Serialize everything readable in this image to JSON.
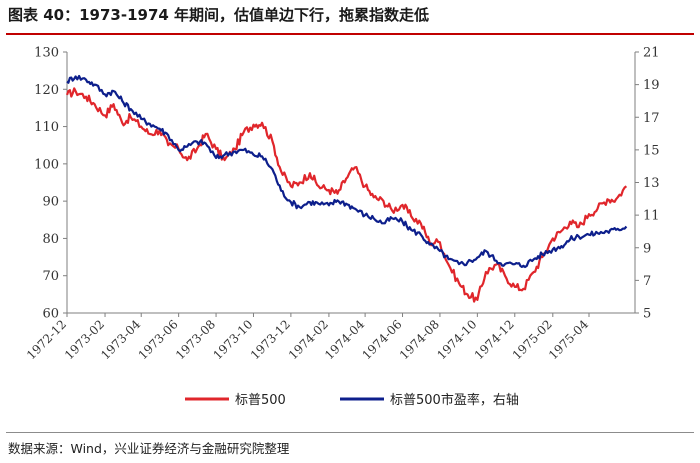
{
  "header": {
    "title": "图表 40：1973-1974 年期间，估值单边下行，拖累指数走低"
  },
  "footer": {
    "source": "数据来源：Wind，兴业证券经济与金融研究院整理"
  },
  "colors": {
    "sp500": "#e0262b",
    "pe": "#0d1f8c",
    "title_rule": "#c00000"
  },
  "chart_data": {
    "type": "line",
    "x_unit": "month",
    "x_ticks": [
      "1972-12",
      "1973-02",
      "1973-04",
      "1973-06",
      "1973-08",
      "1973-10",
      "1973-12",
      "1974-02",
      "1974-04",
      "1974-06",
      "1974-08",
      "1974-10",
      "1974-12",
      "1975-02",
      "1975-04"
    ],
    "y_left": {
      "min": 60,
      "max": 130,
      "ticks": [
        "60",
        "70",
        "80",
        "90",
        "100",
        "110",
        "120",
        "130"
      ]
    },
    "y_right": {
      "min": 5,
      "max": 21,
      "ticks": [
        "5",
        "7",
        "9",
        "11",
        "13",
        "15",
        "17",
        "19",
        "21"
      ]
    },
    "legend_position": "bottom",
    "grid": false,
    "series": [
      {
        "name": "标普500",
        "axis": "left",
        "color": "#e0262b",
        "points": [
          [
            "1972-12-01",
            118.5
          ],
          [
            "1972-12-15",
            119.5
          ],
          [
            "1973-01-01",
            118.0
          ],
          [
            "1973-01-15",
            116.0
          ],
          [
            "1973-02-01",
            113.0
          ],
          [
            "1973-02-15",
            116.0
          ],
          [
            "1973-03-01",
            111.0
          ],
          [
            "1973-03-15",
            112.5
          ],
          [
            "1973-04-01",
            110.0
          ],
          [
            "1973-04-15",
            108.0
          ],
          [
            "1973-05-01",
            109.0
          ],
          [
            "1973-05-15",
            105.0
          ],
          [
            "1973-06-01",
            104.0
          ],
          [
            "1973-06-15",
            101.0
          ],
          [
            "1973-07-01",
            104.0
          ],
          [
            "1973-07-15",
            108.0
          ],
          [
            "1973-08-01",
            104.0
          ],
          [
            "1973-08-15",
            101.0
          ],
          [
            "1973-09-01",
            104.0
          ],
          [
            "1973-09-15",
            108.5
          ],
          [
            "1973-10-01",
            110.5
          ],
          [
            "1973-10-15",
            111.0
          ],
          [
            "1973-11-01",
            106.0
          ],
          [
            "1973-11-15",
            98.0
          ],
          [
            "1973-12-01",
            94.0
          ],
          [
            "1973-12-15",
            95.0
          ],
          [
            "1974-01-01",
            97.5
          ],
          [
            "1974-01-15",
            94.0
          ],
          [
            "1974-02-01",
            93.0
          ],
          [
            "1974-02-15",
            92.0
          ],
          [
            "1974-03-01",
            96.0
          ],
          [
            "1974-03-15",
            99.0
          ],
          [
            "1974-04-01",
            94.0
          ],
          [
            "1974-04-15",
            91.0
          ],
          [
            "1974-05-01",
            90.0
          ],
          [
            "1974-05-15",
            87.5
          ],
          [
            "1974-06-01",
            89.0
          ],
          [
            "1974-06-15",
            86.0
          ],
          [
            "1974-07-01",
            84.0
          ],
          [
            "1974-07-15",
            79.0
          ],
          [
            "1974-08-01",
            79.0
          ],
          [
            "1974-08-15",
            73.0
          ],
          [
            "1974-09-01",
            68.0
          ],
          [
            "1974-09-15",
            65.0
          ],
          [
            "1974-10-01",
            63.5
          ],
          [
            "1974-10-15",
            71.0
          ],
          [
            "1974-11-01",
            73.0
          ],
          [
            "1974-11-15",
            70.0
          ],
          [
            "1974-12-01",
            67.0
          ],
          [
            "1974-12-15",
            66.5
          ],
          [
            "1975-01-01",
            71.0
          ],
          [
            "1975-01-15",
            75.0
          ],
          [
            "1975-02-01",
            80.0
          ],
          [
            "1975-02-15",
            82.0
          ],
          [
            "1975-03-01",
            84.5
          ],
          [
            "1975-03-15",
            83.0
          ],
          [
            "1975-04-01",
            86.5
          ],
          [
            "1975-04-15",
            88.0
          ],
          [
            "1975-05-01",
            90.5
          ],
          [
            "1975-05-15",
            90.5
          ],
          [
            "1975-06-01",
            94.0
          ]
        ]
      },
      {
        "name": "标普500市盈率，右轴",
        "axis": "right",
        "color": "#0d1f8c",
        "points": [
          [
            "1972-12-01",
            19.2
          ],
          [
            "1972-12-15",
            19.5
          ],
          [
            "1973-01-01",
            19.3
          ],
          [
            "1973-01-15",
            19.0
          ],
          [
            "1973-02-01",
            18.4
          ],
          [
            "1973-02-15",
            18.6
          ],
          [
            "1973-03-01",
            18.0
          ],
          [
            "1973-03-15",
            17.5
          ],
          [
            "1973-04-01",
            16.9
          ],
          [
            "1973-04-15",
            16.6
          ],
          [
            "1973-05-01",
            16.3
          ],
          [
            "1973-05-15",
            15.9
          ],
          [
            "1973-06-01",
            15.0
          ],
          [
            "1973-06-15",
            15.2
          ],
          [
            "1973-07-01",
            15.5
          ],
          [
            "1973-07-15",
            15.4
          ],
          [
            "1973-08-01",
            14.5
          ],
          [
            "1973-08-15",
            14.7
          ],
          [
            "1973-09-01",
            14.9
          ],
          [
            "1973-09-15",
            15.0
          ],
          [
            "1973-10-01",
            14.7
          ],
          [
            "1973-10-15",
            14.6
          ],
          [
            "1973-11-01",
            13.8
          ],
          [
            "1973-11-15",
            12.5
          ],
          [
            "1973-12-01",
            11.8
          ],
          [
            "1973-12-15",
            11.5
          ],
          [
            "1974-01-01",
            11.8
          ],
          [
            "1974-01-15",
            11.7
          ],
          [
            "1974-02-01",
            11.6
          ],
          [
            "1974-02-15",
            11.9
          ],
          [
            "1974-03-01",
            11.7
          ],
          [
            "1974-03-15",
            11.4
          ],
          [
            "1974-04-01",
            11.0
          ],
          [
            "1974-04-15",
            10.8
          ],
          [
            "1974-05-01",
            10.5
          ],
          [
            "1974-05-15",
            10.8
          ],
          [
            "1974-06-01",
            10.6
          ],
          [
            "1974-06-15",
            10.1
          ],
          [
            "1974-07-01",
            9.8
          ],
          [
            "1974-07-15",
            9.2
          ],
          [
            "1974-08-01",
            8.8
          ],
          [
            "1974-08-15",
            8.3
          ],
          [
            "1974-09-01",
            8.0
          ],
          [
            "1974-09-15",
            8.1
          ],
          [
            "1974-10-01",
            8.4
          ],
          [
            "1974-10-15",
            8.8
          ],
          [
            "1974-11-01",
            8.2
          ],
          [
            "1974-11-15",
            8.0
          ],
          [
            "1974-12-01",
            8.0
          ],
          [
            "1974-12-15",
            7.9
          ],
          [
            "1975-01-01",
            8.3
          ],
          [
            "1975-01-15",
            8.6
          ],
          [
            "1975-02-01",
            8.9
          ],
          [
            "1975-02-15",
            9.1
          ],
          [
            "1975-03-01",
            9.5
          ],
          [
            "1975-03-15",
            9.7
          ],
          [
            "1975-04-01",
            9.8
          ],
          [
            "1975-04-15",
            9.9
          ],
          [
            "1975-05-01",
            10.0
          ],
          [
            "1975-05-15",
            10.1
          ],
          [
            "1975-06-01",
            10.3
          ]
        ]
      }
    ]
  }
}
